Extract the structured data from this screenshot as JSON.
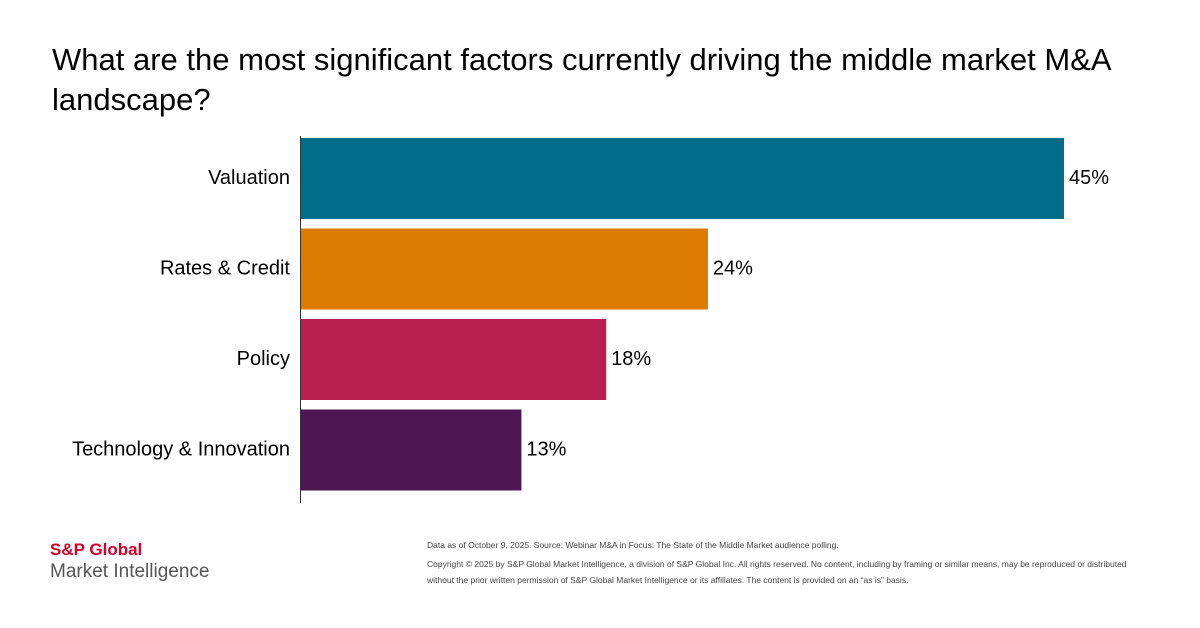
{
  "chart_data": {
    "type": "bar",
    "orientation": "horizontal",
    "title": "What are the most significant factors currently driving the middle market M&A landscape?",
    "categories": [
      "Valuation",
      "Rates & Credit",
      "Policy",
      "Technology & Innovation"
    ],
    "values": [
      45,
      24,
      18,
      13
    ],
    "value_labels": [
      "45%",
      "24%",
      "18%",
      "13%"
    ],
    "colors": [
      "#006e8a",
      "#dd7a00",
      "#b81e50",
      "#4f1654"
    ]
  },
  "logo": {
    "brand": "S&P Global",
    "division": "Market Intelligence"
  },
  "footer": {
    "source": "Data as of October 9, 2025. Source: Webinar M&A in Focus: The State of the Middle Market audience polling.",
    "copyright": "Copyright © 2025 by S&P Global Market Intelligence, a division of S&P Global Inc. All rights reserved. No content, including by framing or similar means, may be reproduced or distributed without the prior written permission of S&P Global Market Intelligence or its affiliates. The content is provided on an “as is” basis."
  }
}
